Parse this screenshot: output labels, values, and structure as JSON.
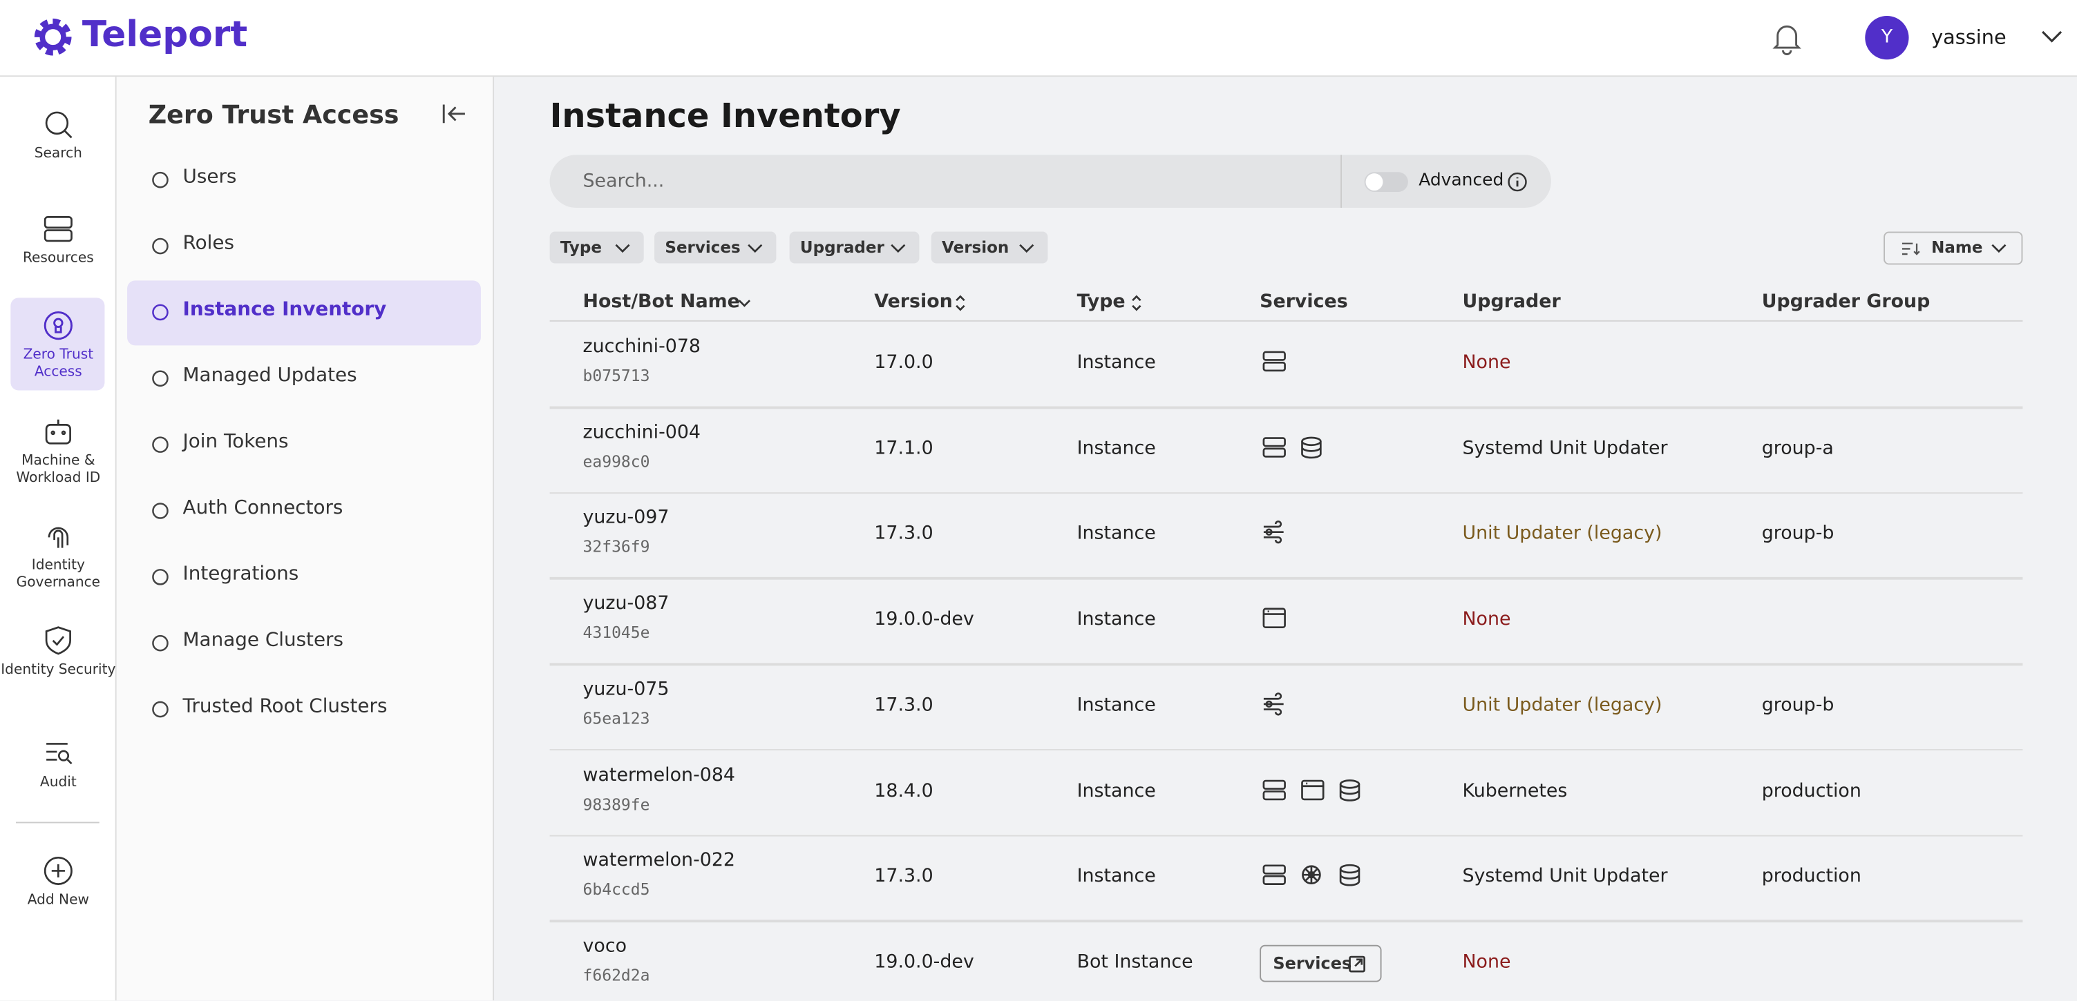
{
  "header": {
    "brand": "Teleport",
    "avatar_initial": "Y",
    "user": "yassine"
  },
  "rail": [
    "Search",
    "Resources",
    "Zero Trust Access",
    "Machine & Workload ID",
    "Identity Governance",
    "Identity Security",
    "Audit",
    "Add New"
  ],
  "sidebar": {
    "title": "Zero Trust Access",
    "items": [
      "Users",
      "Roles",
      "Instance Inventory",
      "Managed Updates",
      "Join Tokens",
      "Auth Connectors",
      "Integrations",
      "Manage Clusters",
      "Trusted Root Clusters"
    ]
  },
  "main": {
    "title": "Instance Inventory",
    "search_placeholder": "Search...",
    "advanced": "Advanced",
    "filters": [
      "Type",
      "Services",
      "Upgrader",
      "Version"
    ],
    "sort": "Name"
  },
  "table": {
    "columns": [
      "Host/Bot Name",
      "Version",
      "Type",
      "Services",
      "Upgrader",
      "Upgrader Group"
    ],
    "rows": [
      [
        "zucchini-078",
        "b075713",
        "17.0.0",
        "Instance",
        null,
        "None",
        null
      ],
      [
        "zucchini-004",
        "ea998c0",
        "17.1.0",
        "Instance",
        null,
        "Systemd Unit Updater",
        "group-a"
      ],
      [
        "yuzu-097",
        "32f36f9",
        "17.3.0",
        "Instance",
        null,
        "Unit Updater (legacy)",
        "group-b"
      ],
      [
        "yuzu-087",
        "431045e",
        "19.0.0-dev",
        "Instance",
        null,
        "None",
        null
      ],
      [
        "yuzu-075",
        "65ea123",
        "17.3.0",
        "Instance",
        null,
        "Unit Updater (legacy)",
        "group-b"
      ],
      [
        "watermelon-084",
        "98389fe",
        "18.4.0",
        "Instance",
        null,
        "Kubernetes",
        "production"
      ],
      [
        "watermelon-022",
        "6b4ccd5",
        "17.3.0",
        "Instance",
        null,
        "Systemd Unit Updater",
        "production"
      ],
      [
        "voco",
        "f662d2a",
        "19.0.0-dev",
        "Bot Instance",
        "Services",
        "None",
        null
      ]
    ]
  }
}
